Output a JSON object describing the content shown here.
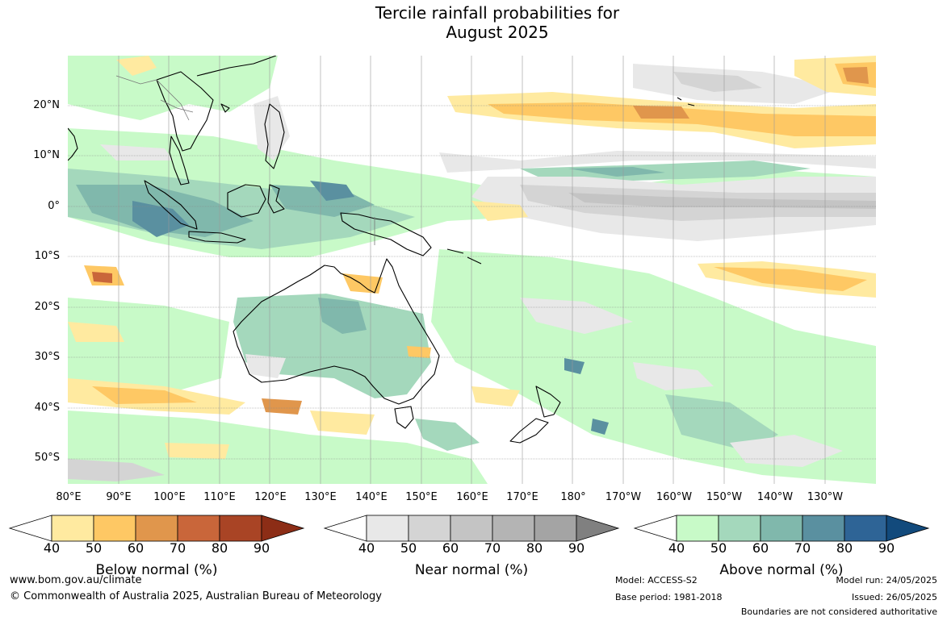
{
  "title": {
    "line1": "Tercile rainfall probabilities for",
    "line2": "August 2025"
  },
  "map": {
    "region": "Australasia and western Pacific",
    "latitude_labels": [
      "20°N",
      "10°N",
      "0°",
      "10°S",
      "20°S",
      "30°S",
      "40°S",
      "50°S"
    ],
    "longitude_labels": [
      "80°E",
      "90°E",
      "100°E",
      "110°E",
      "120°E",
      "130°E",
      "140°E",
      "150°E",
      "160°E",
      "170°E",
      "180°",
      "170°W",
      "160°W",
      "150°W",
      "140°W",
      "130°W"
    ],
    "gridlines": true
  },
  "legends": [
    {
      "caption": "Below normal (%)",
      "ticks": [
        "40",
        "50",
        "60",
        "70",
        "80",
        "90"
      ],
      "colors": [
        "#ffffff",
        "#ffeaa0",
        "#fec864",
        "#e0964c",
        "#c9663a",
        "#a94425",
        "#8c2d16"
      ]
    },
    {
      "caption": "Near normal (%)",
      "ticks": [
        "40",
        "50",
        "60",
        "70",
        "80",
        "90"
      ],
      "colors": [
        "#ffffff",
        "#e8e8e8",
        "#d4d4d4",
        "#c4c4c4",
        "#b4b4b4",
        "#a4a4a4",
        "#808080"
      ]
    },
    {
      "caption": "Above normal (%)",
      "ticks": [
        "40",
        "50",
        "60",
        "70",
        "80",
        "90"
      ],
      "colors": [
        "#ffffff",
        "#c8fac8",
        "#a4d8bc",
        "#80b8ac",
        "#5a90a0",
        "#2e6496",
        "#124a7c"
      ]
    }
  ],
  "footer": {
    "website": "www.bom.gov.au/climate",
    "copyright": "© Commonwealth of Australia 2025, Australian Bureau of Meteorology",
    "model": "Model: ACCESS-S2",
    "base_period": "Base period: 1981-2018",
    "model_run": "Model run: 24/05/2025",
    "issued": "Issued: 26/05/2025",
    "disclaimer": "Boundaries are not considered authoritative"
  }
}
